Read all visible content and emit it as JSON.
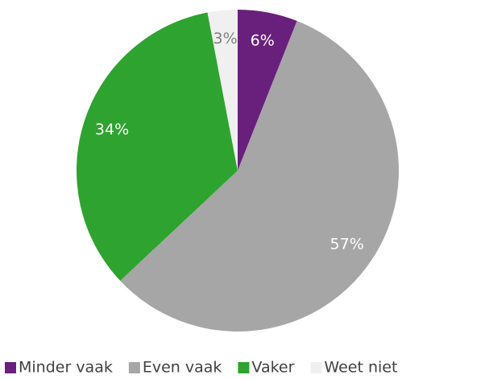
{
  "chart_data": {
    "type": "pie",
    "categories": [
      "Minder vaak",
      "Even vaak",
      "Vaker",
      "Weet niet"
    ],
    "values": [
      6,
      57,
      34,
      3
    ],
    "value_labels": [
      "6%",
      "57%",
      "34%",
      "3%"
    ],
    "colors": [
      "#68207c",
      "#a6a6a6",
      "#2ea32f",
      "#f0f0f0"
    ],
    "legend": "bottom"
  }
}
